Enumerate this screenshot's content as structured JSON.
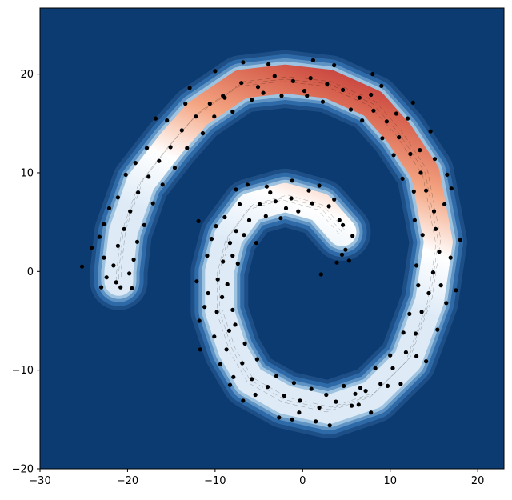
{
  "chart_data": {
    "type": "scatter",
    "title": "",
    "xlabel": "",
    "ylabel": "",
    "xlim": [
      -30,
      23
    ],
    "ylim": [
      -20,
      26.7
    ],
    "grid": false,
    "legend": "none",
    "background_color": "#0b3b70",
    "point_color": "#000000",
    "colormap_from_bottom_spiral_tip_to_outer_tip": [
      "#deebf7",
      "#ffffff",
      "#f4a582",
      "#d6604d",
      "#b2182b"
    ],
    "xticks": [
      {
        "value": -30,
        "label": "−30"
      },
      {
        "value": -20,
        "label": "−20"
      },
      {
        "value": -10,
        "label": "−10"
      },
      {
        "value": 0,
        "label": "0"
      },
      {
        "value": 10,
        "label": "10"
      },
      {
        "value": 20,
        "label": "20"
      }
    ],
    "yticks": [
      {
        "value": -20,
        "label": "−20"
      },
      {
        "value": -10,
        "label": "−10"
      },
      {
        "value": 0,
        "label": "0"
      },
      {
        "value": 10,
        "label": "10"
      },
      {
        "value": 20,
        "label": "20"
      }
    ],
    "spiral_path": [
      [
        4.5,
        4.0
      ],
      [
        2,
        6.5
      ],
      [
        -2,
        7.5
      ],
      [
        -6,
        6.5
      ],
      [
        -8.5,
        3.5
      ],
      [
        -9.5,
        0
      ],
      [
        -9.5,
        -4
      ],
      [
        -8,
        -8
      ],
      [
        -6,
        -11
      ],
      [
        -2,
        -13
      ],
      [
        3,
        -14
      ],
      [
        8,
        -12.5
      ],
      [
        12,
        -9
      ],
      [
        14.5,
        -3
      ],
      [
        15.5,
        3
      ],
      [
        14,
        10
      ],
      [
        11,
        14
      ],
      [
        8,
        17
      ],
      [
        3,
        19
      ],
      [
        -2,
        19.5
      ],
      [
        -7,
        19
      ],
      [
        -12,
        16
      ],
      [
        -15,
        13
      ],
      [
        -18.5,
        9
      ],
      [
        -20.5,
        4
      ],
      [
        -21,
        0
      ],
      [
        -21,
        -1
      ]
    ],
    "points": [
      [
        4.2,
        5.2
      ],
      [
        3.0,
        6.6
      ],
      [
        4.9,
        2.2
      ],
      [
        1.1,
        6.9
      ],
      [
        -1.3,
        7.4
      ],
      [
        -3.1,
        7.1
      ],
      [
        -4.9,
        6.8
      ],
      [
        -6.1,
        5.2
      ],
      [
        -7.6,
        4.1
      ],
      [
        -8.3,
        2.9
      ],
      [
        -9.1,
        1.0
      ],
      [
        -9.7,
        -0.8
      ],
      [
        -9.2,
        -2.6
      ],
      [
        -9.8,
        -4.1
      ],
      [
        -8.4,
        -6.0
      ],
      [
        -8.7,
        -7.9
      ],
      [
        -6.9,
        -9.3
      ],
      [
        -5.8,
        -10.9
      ],
      [
        -4.0,
        -11.7
      ],
      [
        -2.1,
        -12.6
      ],
      [
        -0.3,
        -13.1
      ],
      [
        1.9,
        -13.8
      ],
      [
        3.8,
        -13.2
      ],
      [
        5.6,
        -13.6
      ],
      [
        7.2,
        -12.1
      ],
      [
        8.9,
        -11.4
      ],
      [
        10.3,
        -9.8
      ],
      [
        11.8,
        -8.2
      ],
      [
        12.9,
        -6.3
      ],
      [
        13.6,
        -4.1
      ],
      [
        14.4,
        -2.2
      ],
      [
        14.9,
        -0.1
      ],
      [
        15.6,
        2.0
      ],
      [
        15.2,
        4.3
      ],
      [
        15.0,
        6.1
      ],
      [
        14.1,
        8.2
      ],
      [
        13.5,
        10.0
      ],
      [
        12.3,
        11.9
      ],
      [
        11.0,
        13.6
      ],
      [
        9.6,
        15.2
      ],
      [
        8.1,
        16.3
      ],
      [
        6.5,
        17.6
      ],
      [
        4.6,
        18.4
      ],
      [
        2.8,
        19.0
      ],
      [
        0.9,
        19.6
      ],
      [
        -1.1,
        19.3
      ],
      [
        -3.2,
        19.8
      ],
      [
        -5.1,
        18.7
      ],
      [
        -7.0,
        19.1
      ],
      [
        -8.9,
        17.6
      ],
      [
        -10.6,
        17.0
      ],
      [
        -12.2,
        15.7
      ],
      [
        -13.8,
        14.3
      ],
      [
        -15.1,
        12.6
      ],
      [
        -16.4,
        11.2
      ],
      [
        -17.6,
        9.6
      ],
      [
        -18.8,
        8.0
      ],
      [
        -19.7,
        6.1
      ],
      [
        -20.4,
        4.3
      ],
      [
        -21.1,
        2.6
      ],
      [
        -21.6,
        0.6
      ],
      [
        -21.3,
        -1.1
      ],
      [
        -22.7,
        1.4
      ],
      [
        -25.2,
        0.5
      ],
      [
        -23.0,
        -1.6
      ],
      [
        -19.5,
        -1.7
      ],
      [
        -15.5,
        15.3
      ],
      [
        -13.4,
        17.0
      ],
      [
        -9.1,
        17.8
      ],
      [
        -5.8,
        17.4
      ],
      [
        0.2,
        18.3
      ],
      [
        7.8,
        17.9
      ],
      [
        10.7,
        16.0
      ],
      [
        13.4,
        12.3
      ],
      [
        16.2,
        6.8
      ],
      [
        16.9,
        1.4
      ],
      [
        16.4,
        -3.2
      ],
      [
        13.0,
        -8.6
      ],
      [
        9.7,
        -11.6
      ],
      [
        6.4,
        -13.5
      ],
      [
        1.5,
        -15.2
      ],
      [
        -1.2,
        -15.0
      ],
      [
        -5.4,
        -12.5
      ],
      [
        -7.9,
        -10.7
      ],
      [
        -10.1,
        -6.6
      ],
      [
        -10.8,
        -2.2
      ],
      [
        -10.4,
        3.3
      ],
      [
        -7.2,
        6.8
      ],
      [
        -3.7,
        8.0
      ],
      [
        0.7,
        8.2
      ],
      [
        3.6,
        7.3
      ],
      [
        5.7,
        3.6
      ],
      [
        3.9,
        0.9
      ],
      [
        4.5,
        1.7
      ],
      [
        -11.8,
        -5.0
      ],
      [
        -8.9,
        5.5
      ],
      [
        -6.3,
        8.8
      ],
      [
        -2.5,
        5.4
      ],
      [
        -5.3,
        2.9
      ],
      [
        -7.4,
        0.8
      ],
      [
        -8.0,
        -3.9
      ],
      [
        -6.6,
        -7.3
      ],
      [
        -3.0,
        -10.6
      ],
      [
        1.0,
        -11.9
      ],
      [
        4.7,
        -11.6
      ],
      [
        8.3,
        -9.8
      ],
      [
        11.5,
        -6.2
      ],
      [
        13.2,
        -1.4
      ],
      [
        13.7,
        3.7
      ],
      [
        12.7,
        8.1
      ],
      [
        10.4,
        11.8
      ],
      [
        6.8,
        15.3
      ],
      [
        2.3,
        17.2
      ],
      [
        -2.4,
        17.8
      ],
      [
        -8.0,
        16.2
      ],
      [
        -11.4,
        14.0
      ],
      [
        -14.6,
        10.5
      ],
      [
        -17.1,
        6.9
      ],
      [
        -18.9,
        3.0
      ],
      [
        -19.8,
        -0.2
      ],
      [
        -17.8,
        12.5
      ],
      [
        -20.2,
        9.8
      ],
      [
        -22.1,
        6.4
      ],
      [
        -23.2,
        3.5
      ],
      [
        -10.0,
        20.3
      ],
      [
        -3.9,
        21.0
      ],
      [
        3.6,
        20.9
      ],
      [
        9.0,
        18.8
      ],
      [
        12.0,
        15.5
      ],
      [
        15.1,
        11.4
      ],
      [
        17.0,
        8.4
      ],
      [
        18.0,
        3.2
      ],
      [
        17.5,
        -1.9
      ],
      [
        15.4,
        -5.9
      ],
      [
        14.1,
        -9.1
      ],
      [
        11.2,
        -11.4
      ],
      [
        7.8,
        -14.3
      ],
      [
        3.1,
        -15.6
      ],
      [
        -2.7,
        -14.8
      ],
      [
        -6.8,
        -13.1
      ],
      [
        -9.4,
        -9.4
      ],
      [
        -11.2,
        -3.6
      ],
      [
        -10.9,
        1.6
      ],
      [
        -9.9,
        4.6
      ],
      [
        -4.1,
        8.6
      ],
      [
        1.9,
        8.7
      ],
      [
        -0.5,
        6.1
      ],
      [
        -1.9,
        6.4
      ],
      [
        -4.2,
        5.6
      ],
      [
        -6.7,
        3.7
      ],
      [
        -8.0,
        1.6
      ],
      [
        -8.6,
        -1.3
      ],
      [
        -7.7,
        -5.4
      ],
      [
        -5.2,
        -8.9
      ],
      [
        -1.0,
        -11.3
      ],
      [
        2.7,
        -12.5
      ],
      [
        6.6,
        -11.8
      ],
      [
        10.0,
        -8.5
      ],
      [
        12.2,
        -4.3
      ],
      [
        13.0,
        0.6
      ],
      [
        12.8,
        5.2
      ],
      [
        11.4,
        9.4
      ],
      [
        9.1,
        13.5
      ],
      [
        5.5,
        16.4
      ],
      [
        0.5,
        17.8
      ],
      [
        -4.5,
        18.1
      ],
      [
        -10.1,
        15.7
      ],
      [
        -13.2,
        12.5
      ],
      [
        -16.0,
        8.8
      ],
      [
        -18.1,
        4.7
      ],
      [
        -19.3,
        1.2
      ],
      [
        -22.4,
        -0.6
      ],
      [
        -20.8,
        -1.6
      ],
      [
        -24.1,
        2.4
      ],
      [
        5.3,
        1.1
      ],
      [
        2.1,
        -0.3
      ],
      [
        4.6,
        4.7
      ],
      [
        6.0,
        -12.4
      ],
      [
        -0.4,
        -14.3
      ],
      [
        -8.3,
        -11.5
      ],
      [
        -11.7,
        -7.9
      ],
      [
        -12.1,
        -1.0
      ],
      [
        -11.9,
        5.1
      ],
      [
        -7.6,
        8.3
      ],
      [
        -1.2,
        9.2
      ],
      [
        15.8,
        -1.4
      ],
      [
        16.5,
        9.8
      ],
      [
        14.6,
        14.2
      ],
      [
        12.6,
        17.1
      ],
      [
        8.0,
        20.0
      ],
      [
        1.2,
        21.4
      ],
      [
        -6.8,
        21.2
      ],
      [
        -12.9,
        18.6
      ],
      [
        -16.8,
        15.5
      ],
      [
        -19.1,
        11.0
      ],
      [
        -21.1,
        7.5
      ],
      [
        -22.7,
        4.8
      ]
    ]
  }
}
